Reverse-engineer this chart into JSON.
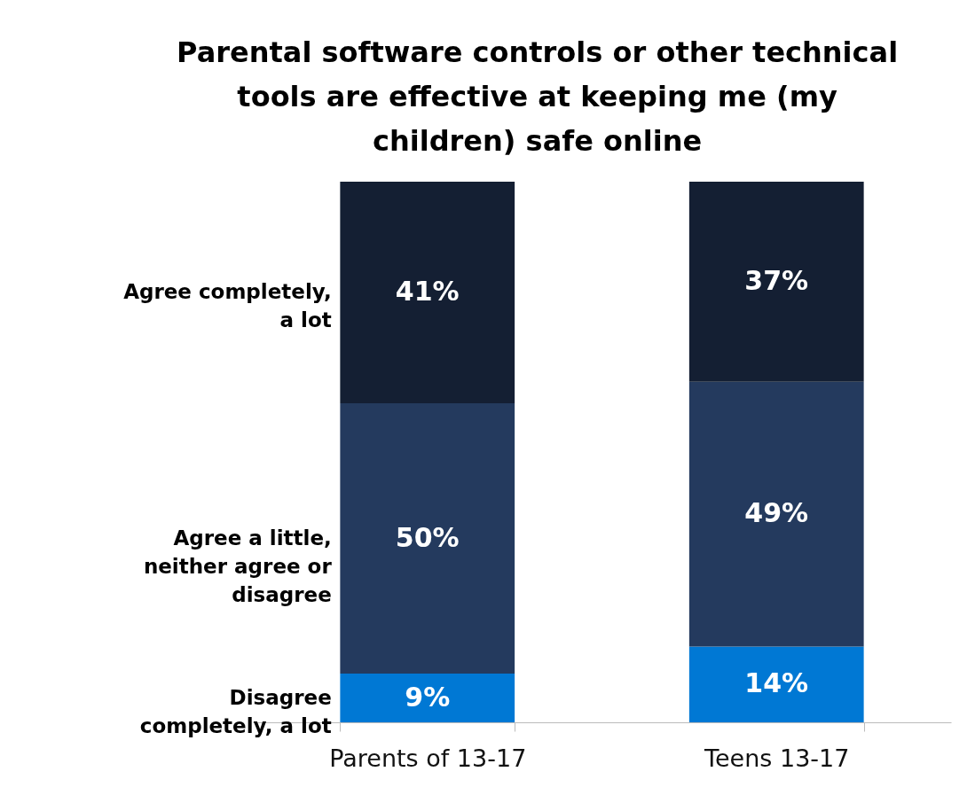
{
  "chart_data": {
    "type": "bar",
    "title": "Parental software controls or other technical tools are effective at keeping me (my children) safe online",
    "categories": [
      "Parents of 13-17",
      "Teens 13-17"
    ],
    "stacked": true,
    "legend": "left",
    "tick_labels": "x",
    "series": [
      {
        "name": "Disagree completely, a lot",
        "color": "#0078d4",
        "values": [
          9,
          14
        ],
        "value_labels": [
          "9%",
          "14%"
        ]
      },
      {
        "name": "Agree a little, neither agree or disagree",
        "color": "#243a5e",
        "values": [
          50,
          49
        ],
        "value_labels": [
          "50%",
          "49%"
        ]
      },
      {
        "name": "Agree completely, a lot",
        "color": "#141f33",
        "values": [
          41,
          37
        ],
        "value_labels": [
          "41%",
          "37%"
        ]
      }
    ]
  }
}
